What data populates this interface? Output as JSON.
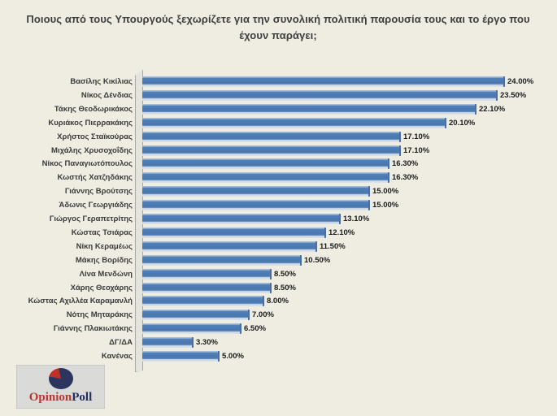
{
  "title": "Ποιους από τους Υπουργούς  ξεχωρίζετε για την συνολική πολιτική παρουσία τους και το έργο που έχουν παράγει;",
  "chart_data": {
    "type": "bar",
    "orientation": "horizontal",
    "title": "Ποιους από τους Υπουργούς  ξεχωρίζετε για την συνολική πολιτική παρουσία τους και το έργο που έχουν παράγει;",
    "categories": [
      "Βασίλης Κικίλιας",
      "Νίκος Δένδιας",
      "Τάκης Θεοδωρικάκος",
      "Κυριάκος Πιερρακάκης",
      "Χρήστος Σταϊκούρας",
      "Μιχάλης Χρυσοχοΐδης",
      "Νίκος Παναγιωτόπουλος",
      "Κωστής Χατζηδάκης",
      "Γιάννης Βρούτσης",
      "Άδωνις Γεωργιάδης",
      "Γιώργος Γεραπετρίτης",
      "Κώστας Τσιάρας",
      "Νίκη Κεραμέως",
      "Μάκης Βορίδης",
      "Λίνα Μενδώνη",
      "Χάρης Θεοχάρης",
      "Κώστας Αχιλλέα Καραμανλή",
      "Νότης Μηταράκης",
      "Γιάννης Πλακιωτάκης",
      "ΔΓ/ΔΑ",
      "Κανένας"
    ],
    "values": [
      24.0,
      23.5,
      22.1,
      20.1,
      17.1,
      17.1,
      16.3,
      16.3,
      15.0,
      15.0,
      13.1,
      12.1,
      11.5,
      10.5,
      8.5,
      8.5,
      8.0,
      7.0,
      6.5,
      3.3,
      5.0
    ],
    "value_labels": [
      "24.00%",
      "23.50%",
      "22.10%",
      "20.10%",
      "17.10%",
      "17.10%",
      "16.30%",
      "16.30%",
      "15.00%",
      "15.00%",
      "13.10%",
      "12.10%",
      "11.50%",
      "10.50%",
      "8.50%",
      "8.50%",
      "8.00%",
      "7.00%",
      "6.50%",
      "3.30%",
      "5.00%"
    ],
    "xlim": [
      0,
      26
    ],
    "grid": false,
    "legend": "none",
    "bar_color": "#4E7DB8",
    "style": "3d-effect-bars"
  },
  "logo": {
    "text_primary": "Opinion",
    "text_secondary": "Poll",
    "primary_color": "#B23A2E",
    "secondary_color": "#20305E",
    "icon": "pie-circle-icon"
  },
  "colors": {
    "background": "#EFECE2",
    "bar": "#4E7DB8",
    "title_text": "#3E3E3E"
  }
}
